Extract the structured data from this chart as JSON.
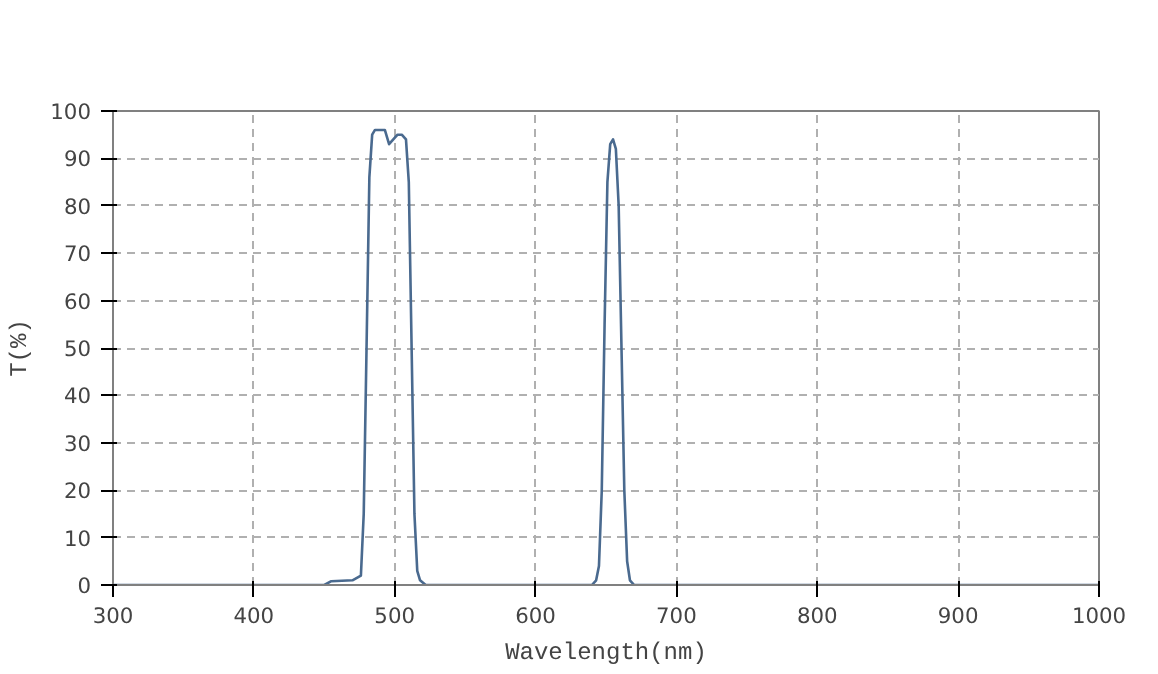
{
  "chart_data": {
    "type": "line",
    "xlabel": "Wavelength(nm)",
    "ylabel": "T(%)",
    "x": [
      300,
      450,
      455,
      470,
      476,
      478,
      480,
      482,
      484,
      486,
      490,
      493,
      496,
      499,
      502,
      505,
      508,
      510,
      512,
      514,
      516,
      518,
      522,
      640,
      643,
      645,
      647,
      649,
      651,
      653,
      655,
      657,
      659,
      661,
      663,
      665,
      667,
      670,
      1000
    ],
    "series": [
      {
        "color": "#4a6a8f",
        "values": [
          0,
          0,
          0.8,
          1,
          2,
          15,
          50,
          86,
          95,
          96,
          96,
          96,
          93,
          94,
          95,
          95,
          94,
          85,
          50,
          15,
          3,
          1,
          0,
          0,
          1,
          4,
          20,
          55,
          85,
          93,
          94,
          92,
          80,
          50,
          20,
          5,
          1,
          0,
          0
        ]
      }
    ],
    "xlim": [
      300,
      1000
    ],
    "ylim": [
      0,
      100
    ],
    "xticks": [
      300,
      400,
      500,
      600,
      700,
      800,
      900,
      1000
    ],
    "yticks": [
      0,
      10,
      20,
      30,
      40,
      50,
      60,
      70,
      80,
      90,
      100
    ],
    "grid": true,
    "line_style": "solid",
    "marker": "none"
  }
}
